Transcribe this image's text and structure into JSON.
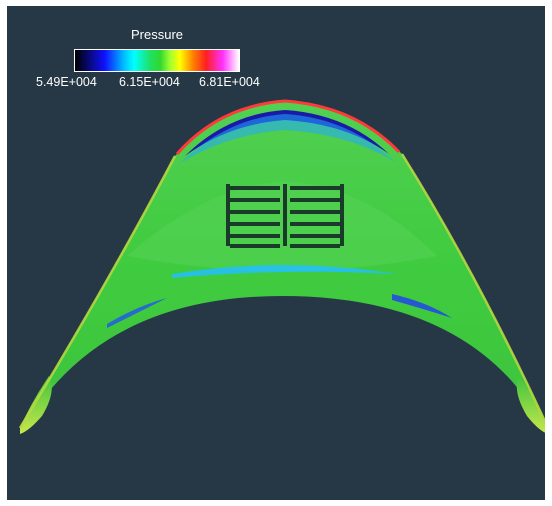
{
  "legend": {
    "title": "Pressure",
    "ticks": [
      "5.49E+004",
      "6.15E+004",
      "6.81E+004"
    ]
  },
  "colors": {
    "background": "#263845",
    "field_base": "#3dcc3d",
    "low_pressure": "#1a1aa8",
    "high_pressure": "#ff2a2a",
    "colorbar_stops": [
      "#000000",
      "#0a0a8a",
      "#1010ff",
      "#00c0ff",
      "#00ffff",
      "#20e060",
      "#a0ff30",
      "#ffff00",
      "#ff8000",
      "#ff2020",
      "#ff30ff",
      "#ffffff"
    ]
  }
}
